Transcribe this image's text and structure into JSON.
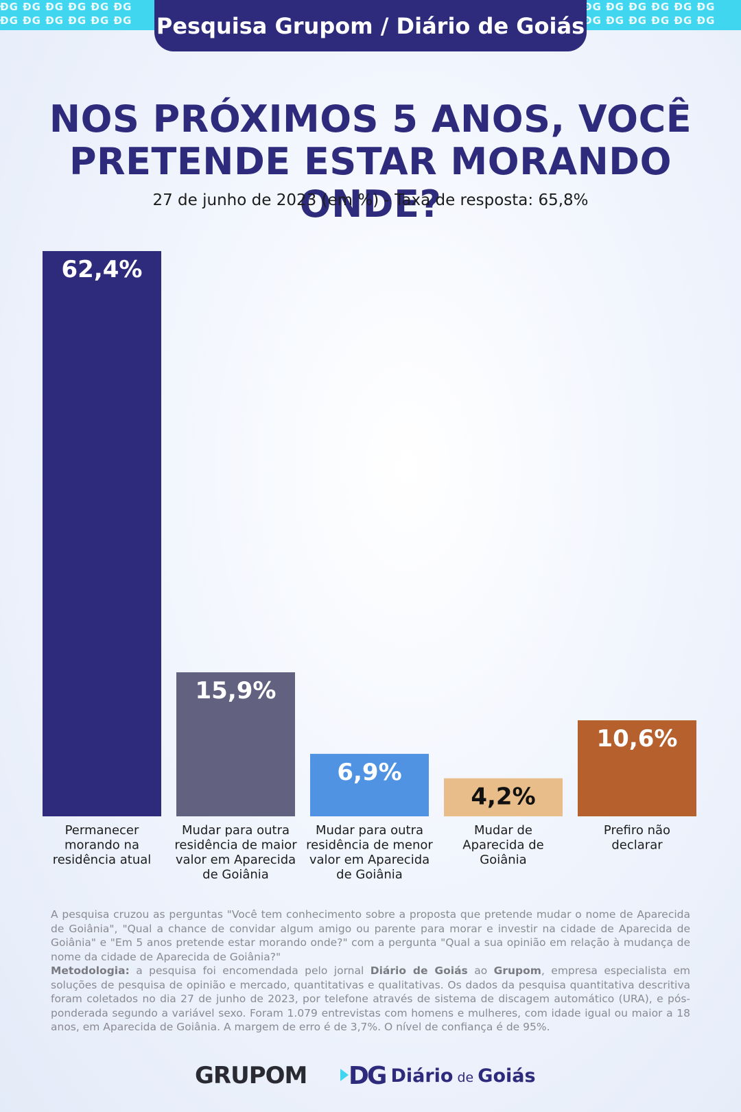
{
  "header": {
    "tab_title": "Pesquisa Grupom / Diário de Goiás",
    "pattern_text": "ÐG ÐG ÐG ÐG ÐG ÐG"
  },
  "colors": {
    "navy": "#2e2a7c",
    "slate": "#62617f",
    "blue": "#5193e3",
    "sand": "#e9bd89",
    "rust": "#b5602d",
    "cyan": "#40d6ef"
  },
  "chart_data": {
    "type": "bar",
    "title": "NOS PRÓXIMOS 5 ANOS, VOCÊ PRETENDE ESTAR MORANDO ONDE?",
    "title_lines": [
      "NOS PRÓXIMOS 5 ANOS, VOCÊ",
      "PRETENDE ESTAR MORANDO ONDE?"
    ],
    "subtitle": "27 de junho de 2023 (em %) - Taxa de resposta: 65,8%",
    "xlabel": "",
    "ylabel": "",
    "ylim": [
      0,
      62.4
    ],
    "grid": false,
    "categories": [
      [
        "Permanecer",
        "morando na",
        "residência atual"
      ],
      [
        "Mudar para outra",
        "residência de maior",
        "valor em Aparecida",
        "de Goiânia"
      ],
      [
        "Mudar para outra",
        "residência de menor",
        "valor em Aparecida",
        "de Goiânia"
      ],
      [
        "Mudar de",
        "Aparecida de",
        "Goiânia"
      ],
      [
        "Prefiro não",
        "declarar"
      ]
    ],
    "values": [
      62.4,
      15.9,
      6.9,
      4.2,
      10.6
    ],
    "value_labels": [
      "62,4%",
      "15,9%",
      "6,9%",
      "4,2%",
      "10,6%"
    ],
    "bar_colors": [
      "#2e2a7c",
      "#62617f",
      "#5193e3",
      "#e9bd89",
      "#b5602d"
    ],
    "label_colors": [
      "#ffffff",
      "#ffffff",
      "#ffffff",
      "#111111",
      "#ffffff"
    ]
  },
  "footnote": {
    "intro": "A pesquisa cruzou as perguntas \"Você tem conhecimento sobre a proposta que pretende mudar o nome de Aparecida de Goiânia\", \"Qual a chance de convidar algum amigo ou parente para morar e investir na cidade de Aparecida de Goiânia\" e \"Em 5 anos pretende estar morando onde?\" com a pergunta \"Qual a sua opinião em relação à mudança de nome da cidade de Aparecida de Goiânia?\"",
    "method_label": "Metodologia:",
    "method_part1": " a pesquisa foi encomendada pelo jornal ",
    "method_bold1": "Diário de Goiás",
    "method_part2": " ao ",
    "method_bold2": "Grupom",
    "method_part3": ", empresa especialista em soluções de pesquisa de opinião e mercado, quantitativas e qualitativas. Os dados da pesquisa quantitativa descritiva foram coletados no dia 27 de junho de 2023, por telefone através de sistema de discagem automático (URA), e pós-ponderada segundo a variável sexo. Foram 1.079 entrevistas com homens e mulheres, com idade igual ou maior a 18 anos, em Aparecida de Goiânia. A margem de erro é de 3,7%. O nível de confiança é de 95%."
  },
  "logos": {
    "grupom": "GRUPOM",
    "dg_mark": "DG",
    "dg_name_main": "Diário",
    "dg_name_small": " de ",
    "dg_name_end": "Goiás"
  }
}
